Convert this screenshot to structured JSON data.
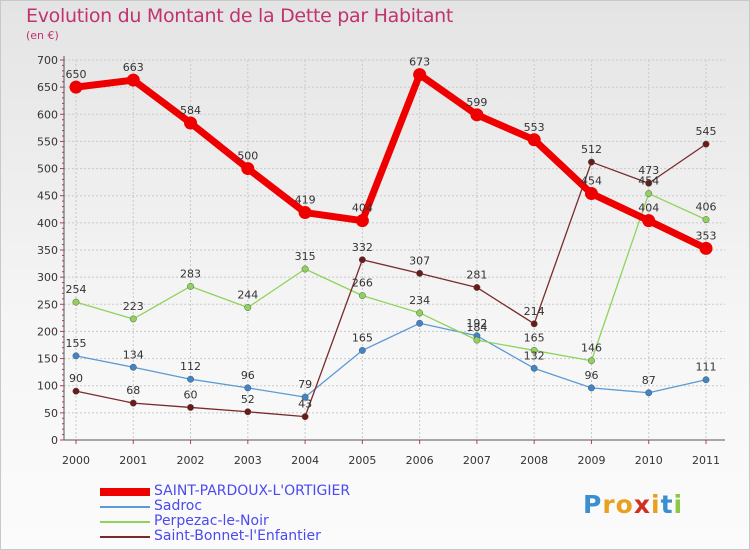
{
  "header": {
    "title": "Evolution du Montant de la Dette par Habitant",
    "subtitle": "(en €)"
  },
  "chart_data": {
    "type": "line",
    "title": "Evolution du Montant de la Dette par Habitant",
    "subtitle": "(en €)",
    "xlabel": "",
    "ylabel": "",
    "x": [
      "2000",
      "2001",
      "2002",
      "2003",
      "2004",
      "2005",
      "2006",
      "2007",
      "2008",
      "2009",
      "2010",
      "2011"
    ],
    "ylim": [
      0,
      700
    ],
    "yticks": [
      0,
      50,
      100,
      150,
      200,
      250,
      300,
      350,
      400,
      450,
      500,
      550,
      600,
      650,
      700
    ],
    "grid": true,
    "legend_position": "bottom-left",
    "series": [
      {
        "name": "Sadroc",
        "color": "#5b9bd5",
        "marker": "#3f86c8",
        "values": [
          155,
          134,
          112,
          96,
          79,
          165,
          215,
          192,
          132,
          96,
          87,
          111
        ],
        "labels": [
          "155",
          "134",
          "112",
          "96",
          "79",
          "165",
          "",
          "192",
          "132",
          "96",
          "87",
          "111"
        ]
      },
      {
        "name": "Perpezac-le-Noir",
        "color": "#8fd35b",
        "marker": "#8fd35b",
        "values": [
          254,
          223,
          283,
          244,
          315,
          266,
          234,
          184,
          165,
          146,
          454,
          406
        ],
        "labels": [
          "254",
          "223",
          "283",
          "244",
          "315",
          "266",
          "234",
          "184",
          "165",
          "146",
          "454",
          "406"
        ]
      },
      {
        "name": "Saint-Bonnet-l'Enfantier",
        "color": "#7a2a2a",
        "marker": "#6b1a1a",
        "values": [
          90,
          68,
          60,
          52,
          43,
          332,
          307,
          281,
          214,
          512,
          473,
          545
        ],
        "labels": [
          "90",
          "68",
          "60",
          "52",
          "43",
          "332",
          "307",
          "281",
          "214",
          "512",
          "473",
          "545"
        ]
      },
      {
        "name": "SAINT-PARDOUX-L'ORTIGIER",
        "color": "#ee0000",
        "marker": "#ee0000",
        "values": [
          650,
          663,
          584,
          500,
          419,
          404,
          673,
          599,
          553,
          454,
          404,
          353
        ],
        "labels": [
          "650",
          "663",
          "584",
          "500",
          "419",
          "404",
          "673",
          "599",
          "553",
          "454",
          "404",
          "353"
        ]
      }
    ]
  },
  "legend": {
    "items": [
      {
        "label": "SAINT-PARDOUX-L'ORTIGIER",
        "color": "#ee0000"
      },
      {
        "label": "Sadroc",
        "color": "#5b9bd5"
      },
      {
        "label": "Perpezac-le-Noir",
        "color": "#8fd35b"
      },
      {
        "label": "Saint-Bonnet-l'Enfantier",
        "color": "#7a2a2a"
      }
    ]
  },
  "logo": {
    "letters": [
      "P",
      "r",
      "o",
      "x",
      "i",
      "t",
      "i"
    ],
    "colors": [
      "#3a8fd0",
      "#e8a020",
      "#e8a020",
      "#d03020",
      "#e8a020",
      "#3a8fd0",
      "#8cc840"
    ]
  }
}
